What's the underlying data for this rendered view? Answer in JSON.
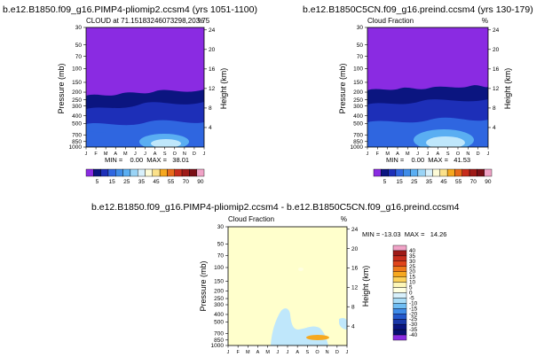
{
  "colors": {
    "bg": "#ffffff",
    "purple": "#8a2be2",
    "deep_navy": "#0b1580",
    "navy": "#1d2fb8",
    "blue": "#2f66e0",
    "light_blue": "#5aaef2",
    "pale_blue": "#bfe7fb",
    "cream": "#ffffcc",
    "orange": "#f6a81f",
    "pink": "#f0a3c7"
  },
  "chart_data": [
    {
      "type": "heatmap",
      "title": "b.e12.B1850.f09_g16.PIMP4-pliomip2.ccsm4 (yrs 1051-1100)",
      "subtitle_left": "CLOUD at 71.15183246073298,203.75",
      "subtitle_right": "%",
      "stats": "MIN =    0.00  MAX =   38.01",
      "xlabel": "",
      "ylabel": "Pressure (mb)",
      "ylabel_right": "Height (km)",
      "x_ticks": [
        "J",
        "F",
        "M",
        "A",
        "M",
        "J",
        "J",
        "A",
        "S",
        "O",
        "N",
        "D",
        "J"
      ],
      "y_ticks": [
        "30",
        "50",
        "70",
        "100",
        "150",
        "200",
        "250",
        "300",
        "400",
        "500",
        "700",
        "850",
        "1000"
      ],
      "y_right_ticks": [
        "24",
        "20",
        "16",
        "12",
        "8",
        "4"
      ],
      "colorbar_labels": [
        "5",
        "15",
        "25",
        "35",
        "45",
        "55",
        "70",
        "90"
      ]
    },
    {
      "type": "heatmap",
      "title": "b.e12.B1850C5CN.f09_g16.preind.ccsm4 (yrs 130-179)",
      "subtitle_left": "Cloud Fraction",
      "subtitle_right": "%",
      "stats": "MIN =    0.00  MAX =   41.53",
      "xlabel": "",
      "ylabel": "Pressure (mb)",
      "ylabel_right": "Height (km)",
      "x_ticks": [
        "J",
        "F",
        "M",
        "A",
        "M",
        "J",
        "J",
        "A",
        "S",
        "O",
        "N",
        "D",
        "J"
      ],
      "y_ticks": [
        "30",
        "50",
        "70",
        "100",
        "150",
        "200",
        "250",
        "300",
        "400",
        "500",
        "700",
        "850",
        "1000"
      ],
      "y_right_ticks": [
        "24",
        "20",
        "16",
        "12",
        "8",
        "4"
      ],
      "colorbar_labels": [
        "5",
        "15",
        "25",
        "35",
        "45",
        "55",
        "70",
        "90"
      ]
    },
    {
      "type": "heatmap",
      "title": "b.e12.B1850.f09_g16.PIMP4-pliomip2.ccsm4 - b.e12.B1850C5CN.f09_g16.preind.ccsm4",
      "subtitle_left": "Cloud Fraction",
      "subtitle_right": "%",
      "stats": "MIN = -13.03  MAX =   14.26",
      "xlabel": "",
      "ylabel": "Pressure (mb)",
      "ylabel_right": "Height (km)",
      "x_ticks": [
        "J",
        "F",
        "M",
        "A",
        "M",
        "J",
        "J",
        "A",
        "S",
        "O",
        "N",
        "D",
        "J"
      ],
      "y_ticks": [
        "30",
        "50",
        "70",
        "100",
        "150",
        "200",
        "250",
        "300",
        "400",
        "500",
        "700",
        "850",
        "1000"
      ],
      "y_right_ticks": [
        "24",
        "20",
        "16",
        "12",
        "8",
        "4"
      ],
      "colorbar_labels": [
        "40",
        "35",
        "30",
        "25",
        "20",
        "15",
        "10",
        "5",
        "0",
        "-5",
        "-10",
        "-15",
        "-20",
        "-25",
        "-30",
        "-35",
        "-40"
      ]
    }
  ]
}
